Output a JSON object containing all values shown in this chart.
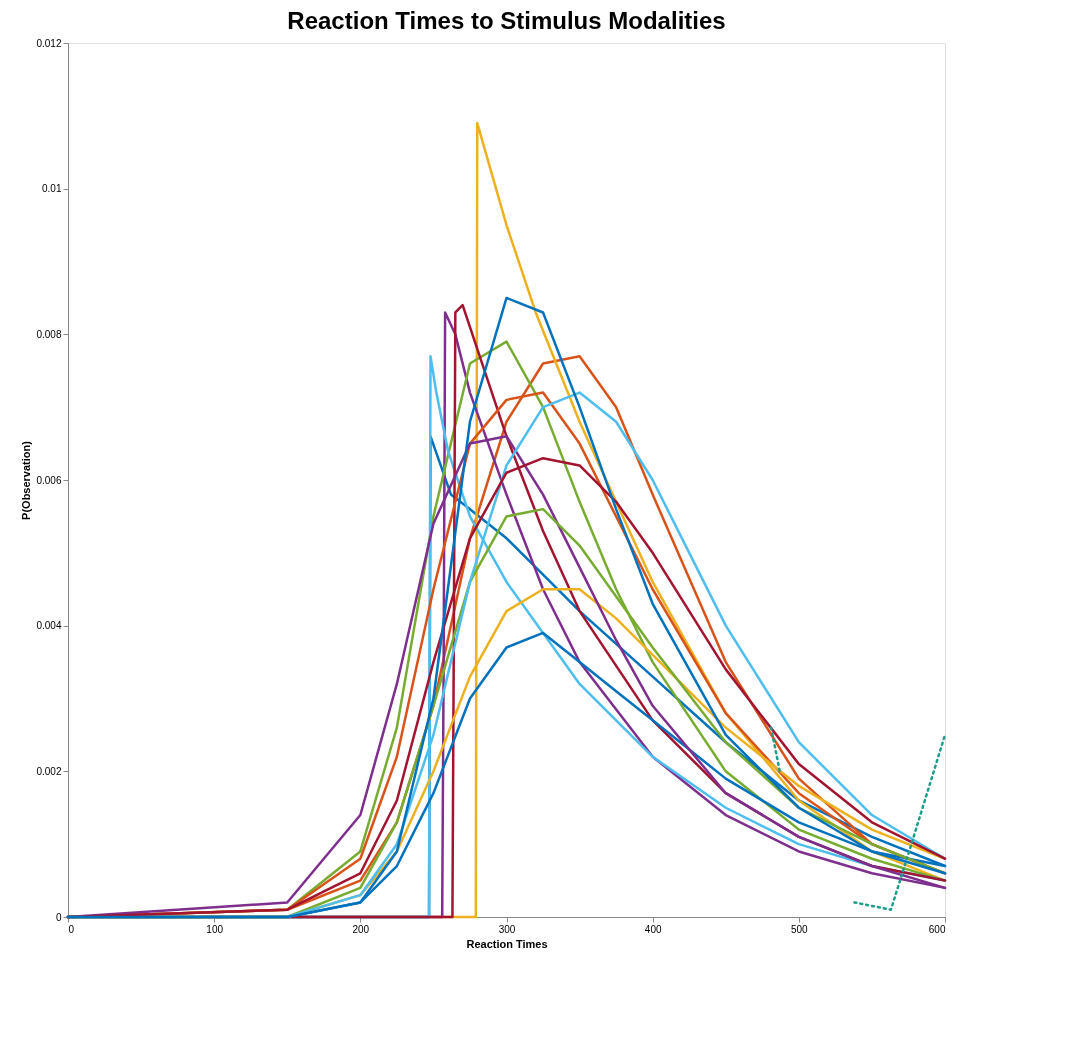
{
  "chart_data": {
    "type": "line",
    "title": "Reaction Times to Stimulus Modalities",
    "xlabel": "Reaction Times",
    "ylabel": "P(Observation)",
    "xlim": [
      0,
      600
    ],
    "xticks": [
      0,
      100,
      200,
      300,
      400,
      500,
      600
    ],
    "ylim": [
      0,
      0.012
    ],
    "yticks": [
      0,
      0.002,
      0.004,
      0.006,
      0.008,
      0.01,
      0.012
    ],
    "grid": false,
    "x": [
      0,
      150,
      200,
      225,
      250,
      275,
      300,
      325,
      350,
      375,
      400,
      450,
      500,
      550,
      600
    ],
    "series": [
      {
        "color": "#0072bd",
        "x": [
          0,
          247,
          248,
          255,
          262,
          275,
          300,
          325,
          350,
          400,
          450,
          500,
          550,
          600
        ],
        "values": [
          0,
          0,
          0.0066,
          0.0062,
          0.0058,
          0.0056,
          0.0052,
          0.0047,
          0.0042,
          0.0033,
          0.0024,
          0.0016,
          0.0011,
          0.0007
        ]
      },
      {
        "color": "#d95319",
        "values": [
          0,
          0.0001,
          0.0005,
          0.0013,
          0.0029,
          0.0052,
          0.0068,
          0.0076,
          0.0077,
          0.007,
          0.0058,
          0.0035,
          0.0019,
          0.001,
          0.0006
        ]
      },
      {
        "color": "#edb120",
        "x": [
          0,
          279,
          280,
          300,
          320,
          350,
          400,
          450,
          500,
          550,
          600
        ],
        "values": [
          0,
          0,
          0.0109,
          0.0095,
          0.0083,
          0.0068,
          0.0046,
          0.0028,
          0.0016,
          0.0009,
          0.0005
        ]
      },
      {
        "color": "#7e2f8e",
        "x": [
          0,
          256,
          257,
          258,
          265,
          275,
          300,
          325,
          350,
          400,
          450,
          500,
          550,
          600
        ],
        "values": [
          0,
          0,
          0.0035,
          0.0083,
          0.008,
          0.0072,
          0.0058,
          0.0045,
          0.0035,
          0.0022,
          0.0014,
          0.0009,
          0.0006,
          0.0004
        ]
      },
      {
        "color": "#77ac30",
        "values": [
          0,
          0.0001,
          0.0009,
          0.0026,
          0.0055,
          0.0076,
          0.0079,
          0.007,
          0.0057,
          0.0045,
          0.0035,
          0.002,
          0.0012,
          0.0008,
          0.0005
        ]
      },
      {
        "color": "#4dbeee",
        "x": [
          0,
          247,
          248,
          252,
          260,
          275,
          300,
          325,
          350,
          400,
          450,
          500,
          550,
          600
        ],
        "values": [
          0,
          0,
          0.0077,
          0.0072,
          0.0064,
          0.0055,
          0.0046,
          0.0039,
          0.0032,
          0.0022,
          0.0015,
          0.001,
          0.0007,
          0.0005
        ]
      },
      {
        "color": "#a2142f",
        "x": [
          0,
          263,
          264,
          265,
          270,
          280,
          300,
          325,
          350,
          400,
          450,
          500,
          550,
          600
        ],
        "values": [
          0,
          0,
          0.004,
          0.0083,
          0.0084,
          0.0078,
          0.0066,
          0.0053,
          0.0042,
          0.0027,
          0.0017,
          0.0011,
          0.0007,
          0.0005
        ]
      },
      {
        "color": "#0072bd",
        "values": [
          0,
          0,
          0.0002,
          0.0007,
          0.0017,
          0.003,
          0.0037,
          0.0039,
          0.0035,
          0.0031,
          0.0027,
          0.0019,
          0.0013,
          0.0009,
          0.0007
        ]
      },
      {
        "color": "#d95319",
        "values": [
          0,
          0.0001,
          0.0008,
          0.0022,
          0.0045,
          0.0065,
          0.0071,
          0.0072,
          0.0065,
          0.0055,
          0.0045,
          0.0028,
          0.0017,
          0.001,
          0.0006
        ]
      },
      {
        "color": "#edb120",
        "values": [
          0,
          0,
          0.0003,
          0.0009,
          0.002,
          0.0033,
          0.0042,
          0.0045,
          0.0045,
          0.0041,
          0.0036,
          0.0026,
          0.0018,
          0.0012,
          0.0008
        ]
      },
      {
        "color": "#7e2f8e",
        "values": [
          0,
          0.0002,
          0.0014,
          0.0032,
          0.0054,
          0.0065,
          0.0066,
          0.0058,
          0.0048,
          0.0038,
          0.0029,
          0.0017,
          0.0011,
          0.0007,
          0.0004
        ]
      },
      {
        "color": "#77ac30",
        "values": [
          0,
          0,
          0.0004,
          0.0013,
          0.0029,
          0.0046,
          0.0055,
          0.0056,
          0.0051,
          0.0044,
          0.0037,
          0.0024,
          0.0015,
          0.001,
          0.0006
        ]
      },
      {
        "color": "#4dbeee",
        "values": [
          0,
          0,
          0.0003,
          0.001,
          0.0025,
          0.0046,
          0.0062,
          0.007,
          0.0072,
          0.0068,
          0.006,
          0.004,
          0.0024,
          0.0014,
          0.0008
        ]
      },
      {
        "color": "#a2142f",
        "values": [
          0,
          0.0001,
          0.0006,
          0.0016,
          0.0035,
          0.0052,
          0.0061,
          0.0063,
          0.0062,
          0.0057,
          0.005,
          0.0034,
          0.0021,
          0.0013,
          0.0008
        ]
      },
      {
        "color": "#0072bd",
        "values": [
          0,
          0,
          0.0002,
          0.0009,
          0.003,
          0.0068,
          0.0085,
          0.0083,
          0.007,
          0.0056,
          0.0043,
          0.0025,
          0.0015,
          0.0009,
          0.0006
        ]
      },
      {
        "color": "#1b9e8a",
        "line_style": "dotted",
        "x": [
          481,
          487,
          500,
          538,
          563,
          577,
          600
        ],
        "values": [
          0.0026,
          0.002,
          null,
          0.0002,
          0.0001,
          0.001,
          0.0025
        ]
      }
    ]
  }
}
